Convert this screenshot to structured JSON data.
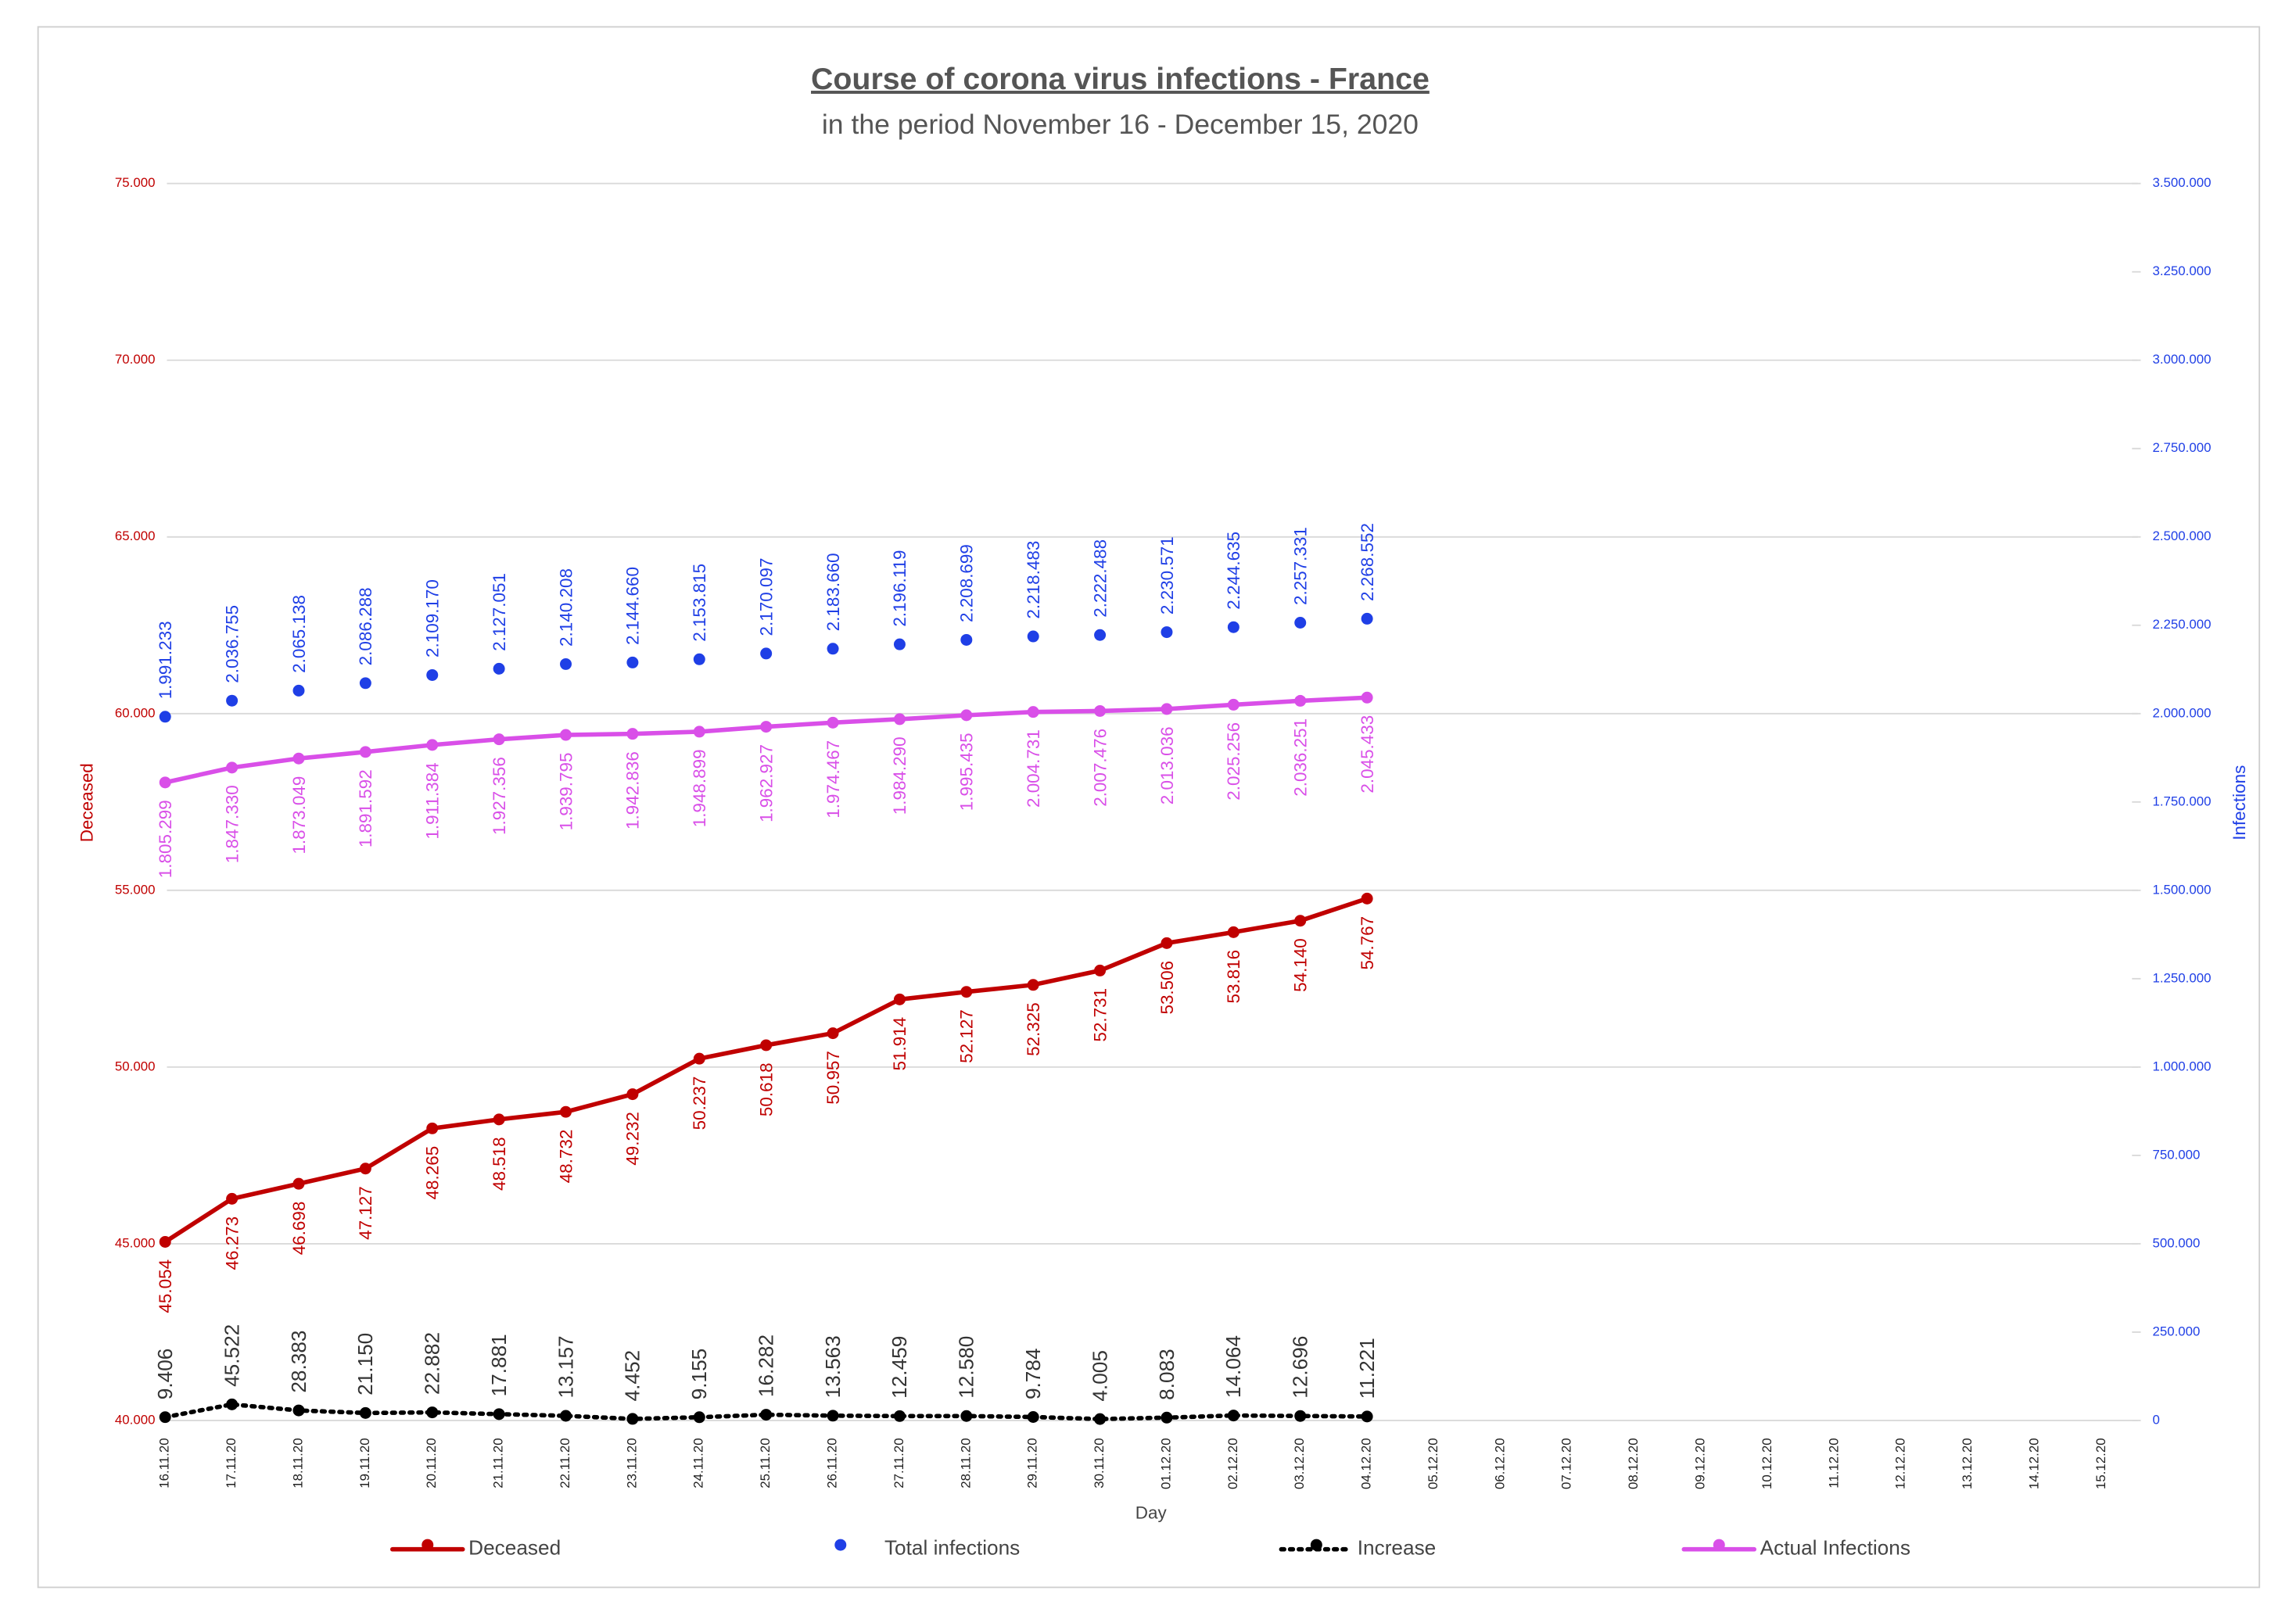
{
  "chart_data": {
    "type": "line",
    "title": "Course of corona virus infections - France",
    "subtitle": "in the period November 16 - December 15, 2020",
    "x_label": "Day",
    "y_label": "Deceased",
    "y2_label": "Infections",
    "categories": [
      "16.11.20",
      "17.11.20",
      "18.11.20",
      "19.11.20",
      "20.11.20",
      "21.11.20",
      "22.11.20",
      "23.11.20",
      "24.11.20",
      "25.11.20",
      "26.11.20",
      "27.11.20",
      "28.11.20",
      "29.11.20",
      "30.11.20",
      "01.12.20",
      "02.12.20",
      "03.12.20",
      "04.12.20",
      "05.12.20",
      "06.12.20",
      "07.12.20",
      "08.12.20",
      "09.12.20",
      "10.12.20",
      "11.12.20",
      "12.12.20",
      "13.12.20",
      "14.12.20",
      "15.12.20"
    ],
    "ylim": [
      40000,
      75000
    ],
    "yticks": [
      {
        "value": 40000,
        "label": "40.000"
      },
      {
        "value": 45000,
        "label": "45.000"
      },
      {
        "value": 50000,
        "label": "50.000"
      },
      {
        "value": 55000,
        "label": "55.000"
      },
      {
        "value": 60000,
        "label": "60.000"
      },
      {
        "value": 65000,
        "label": "65.000"
      },
      {
        "value": 70000,
        "label": "70.000"
      },
      {
        "value": 75000,
        "label": "75.000"
      }
    ],
    "y2lim": [
      0,
      3500000
    ],
    "y2ticks": [
      0,
      {
        "value": 250000,
        "label": "250.000"
      },
      {
        "value": 500000,
        "label": "500.000"
      },
      {
        "value": 750000,
        "label": "750.000"
      },
      {
        "value": 1000000,
        "label": "1.000.000"
      },
      {
        "value": 1250000,
        "label": "1.250.000"
      },
      {
        "value": 1500000,
        "label": "1.500.000"
      },
      {
        "value": 1750000,
        "label": "1.750.000"
      },
      {
        "value": 2000000,
        "label": "2.000.000"
      },
      {
        "value": 2250000,
        "label": "2.250.000"
      },
      {
        "value": 2500000,
        "label": "2.500.000"
      },
      {
        "value": 2750000,
        "label": "2.750.000"
      },
      {
        "value": 3000000,
        "label": "3.000.000"
      },
      {
        "value": 3250000,
        "label": "3.250.000"
      },
      {
        "value": 3500000,
        "label": "3.500.000"
      }
    ],
    "grid": true,
    "legend": "bottom",
    "series": [
      {
        "name": "Deceased",
        "color": "#c00000",
        "line": "solid",
        "label_side": "below",
        "axis": "y",
        "values": [
          45054,
          46273,
          46698,
          47127,
          48265,
          48518,
          48732,
          49232,
          50237,
          50618,
          50957,
          51914,
          52127,
          52325,
          52731,
          53506,
          53816,
          54140,
          54767,
          null,
          null,
          null,
          null,
          null,
          null,
          null,
          null,
          null,
          null,
          null
        ],
        "value_labels": [
          "45.054",
          "46.273",
          "46.698",
          "47.127",
          "48.265",
          "48.518",
          "48.732",
          "49.232",
          "50.237",
          "50.618",
          "50.957",
          "51.914",
          "52.127",
          "52.325",
          "52.731",
          "53.506",
          "53.816",
          "54.140",
          "54.767",
          null,
          null,
          null,
          null,
          null,
          null,
          null,
          null,
          null,
          null,
          null
        ]
      },
      {
        "name": "Total infections",
        "color": "#1f3fe6",
        "line": "none",
        "label_side": "above",
        "axis": "y2",
        "values": [
          1991233,
          2036755,
          2065138,
          2086288,
          2109170,
          2127051,
          2140208,
          2144660,
          2153815,
          2170097,
          2183660,
          2196119,
          2208699,
          2218483,
          2222488,
          2230571,
          2244635,
          2257331,
          2268552,
          null,
          null,
          null,
          null,
          null,
          null,
          null,
          null,
          null,
          null,
          null
        ],
        "value_labels": [
          "1.991.233",
          "2.036.755",
          "2.065.138",
          "2.086.288",
          "2.109.170",
          "2.127.051",
          "2.140.208",
          "2.144.660",
          "2.153.815",
          "2.170.097",
          "2.183.660",
          "2.196.119",
          "2.208.699",
          "2.218.483",
          "2.222.488",
          "2.230.571",
          "2.244.635",
          "2.257.331",
          "2.268.552",
          null,
          null,
          null,
          null,
          null,
          null,
          null,
          null,
          null,
          null,
          null
        ]
      },
      {
        "name": "Increase",
        "color": "#000000",
        "line": "dotted",
        "label_side": "above",
        "axis": "y2",
        "values": [
          9406,
          45522,
          28383,
          21150,
          22882,
          17881,
          13157,
          4452,
          9155,
          16282,
          13563,
          12459,
          12580,
          9784,
          4005,
          8083,
          14064,
          12696,
          11221,
          null,
          null,
          null,
          null,
          null,
          null,
          null,
          null,
          null,
          null,
          null
        ],
        "value_labels": [
          "9.406",
          "45.522",
          "28.383",
          "21.150",
          "22.882",
          "17.881",
          "13.157",
          "4.452",
          "9.155",
          "16.282",
          "13.563",
          "12.459",
          "12.580",
          "9.784",
          "4.005",
          "8.083",
          "14.064",
          "12.696",
          "11.221",
          null,
          null,
          null,
          null,
          null,
          null,
          null,
          null,
          null,
          null,
          null
        ]
      },
      {
        "name": "Actual Infections",
        "color": "#d94fe8",
        "line": "solid",
        "label_side": "below",
        "axis": "y2",
        "values": [
          1805299,
          1847330,
          1873049,
          1891592,
          1911384,
          1927356,
          1939795,
          1942836,
          1948899,
          1962927,
          1974467,
          1984290,
          1995435,
          2004731,
          2007476,
          2013036,
          2025256,
          2036251,
          2045433,
          null,
          null,
          null,
          null,
          null,
          null,
          null,
          null,
          null,
          null,
          null
        ],
        "value_labels": [
          "1.805.299",
          "1.847.330",
          "1.873.049",
          "1.891.592",
          "1.911.384",
          "1.927.356",
          "1.939.795",
          "1.942.836",
          "1.948.899",
          "1.962.927",
          "1.974.467",
          "1.984.290",
          "1.995.435",
          "2.004.731",
          "2.007.476",
          "2.013.036",
          "2.025.256",
          "2.036.251",
          "2.045.433",
          null,
          null,
          null,
          null,
          null,
          null,
          null,
          null,
          null,
          null,
          null
        ]
      }
    ]
  }
}
